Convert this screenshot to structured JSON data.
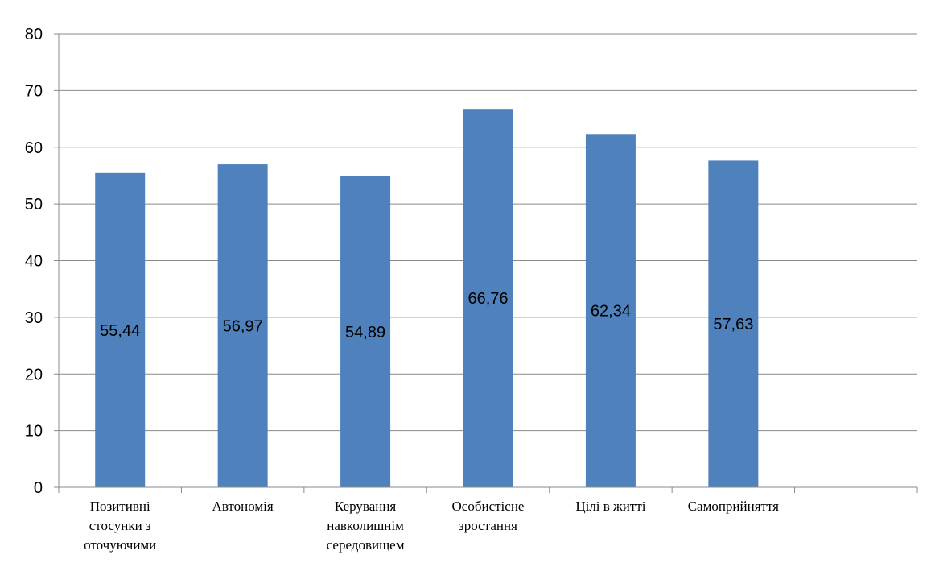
{
  "chart_data": {
    "type": "bar",
    "categories": [
      "Позитивні стосунки з оточуючими",
      "Автономія",
      "Керування навколишнім середовищем",
      "Особистісне зростання",
      "Цілі в житті",
      "Самоприйняття",
      ""
    ],
    "category_lines": [
      [
        "Позитивні",
        "стосунки з",
        "оточуючими"
      ],
      [
        "Автономія"
      ],
      [
        "Керування",
        "навколишнім",
        "середовищем"
      ],
      [
        "Особистісне",
        "зростання"
      ],
      [
        "Цілі в житті"
      ],
      [
        "Самоприйняття"
      ],
      []
    ],
    "values": [
      55.44,
      56.97,
      54.89,
      66.76,
      62.34,
      57.63,
      null
    ],
    "data_labels": [
      "55,44",
      "56,97",
      "54,89",
      "66,76",
      "62,34",
      "57,63",
      ""
    ],
    "ylim": [
      0,
      80
    ],
    "yticks": [
      0,
      10,
      20,
      30,
      40,
      50,
      60,
      70,
      80
    ],
    "grid": true,
    "legend": "none",
    "title": "",
    "xlabel": "",
    "ylabel": "",
    "colors": {
      "bar": "#4f81bd",
      "grid": "#8a8a8a",
      "axis": "#8a8a8a"
    }
  }
}
